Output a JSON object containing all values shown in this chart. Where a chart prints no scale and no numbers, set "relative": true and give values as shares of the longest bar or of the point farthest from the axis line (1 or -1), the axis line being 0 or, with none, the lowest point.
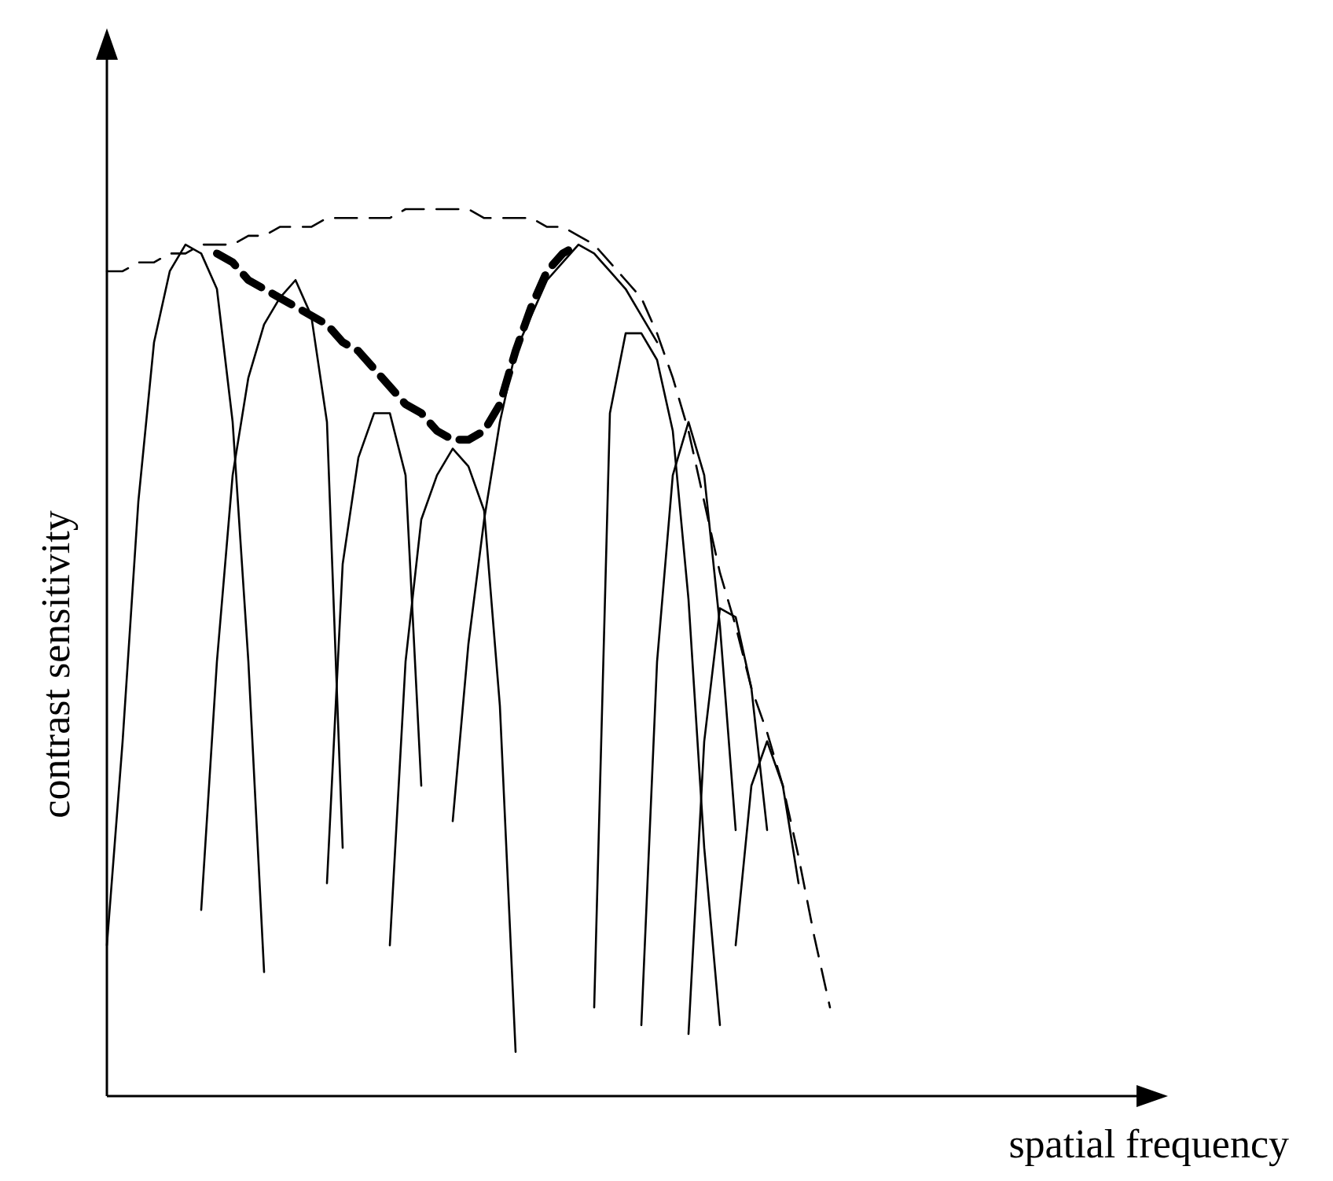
{
  "chart_data": {
    "type": "line",
    "relative": true,
    "xlabel": "spatial frequency",
    "ylabel": "contrast sensitivity",
    "categories": [
      null,
      null,
      null,
      null,
      null,
      null,
      null,
      null,
      null,
      null,
      null,
      null,
      null,
      null,
      null,
      null,
      null,
      null,
      null,
      null,
      null,
      null,
      null,
      null,
      null,
      null,
      null,
      null,
      null,
      null,
      null,
      null,
      null,
      null,
      null,
      null,
      null,
      null,
      null,
      null,
      null,
      null,
      null,
      null,
      null,
      null,
      null,
      null,
      null,
      null,
      null,
      null,
      null,
      null,
      null,
      null,
      null,
      null,
      null,
      null,
      null,
      null,
      null,
      null,
      null,
      null
    ],
    "series": [
      {
        "color": "#000000",
        "line_style": "dashed",
        "values": [
          0.93,
          0.93,
          0.94,
          0.94,
          0.95,
          0.95,
          0.96,
          0.96,
          0.96,
          0.97,
          0.97,
          0.98,
          0.98,
          0.98,
          0.99,
          0.99,
          0.99,
          0.99,
          0.99,
          1,
          1,
          1,
          1,
          1,
          0.99,
          0.99,
          0.99,
          0.99,
          0.98,
          0.98,
          0.97,
          0.96,
          0.94,
          0.92,
          0.9,
          0.86,
          0.81,
          0.75,
          0.67,
          0.59,
          0.53,
          0.46,
          0.41,
          0.35,
          0.27,
          0.18,
          0.1,
          null,
          null,
          null,
          null,
          null,
          null,
          null,
          null,
          null,
          null,
          null,
          null,
          null,
          null,
          null,
          null,
          null,
          null,
          null
        ]
      },
      {
        "color": "#000000",
        "line_style": "dashed",
        "values": [
          null,
          null,
          null,
          null,
          null,
          null,
          null,
          0.95,
          0.94,
          0.92,
          0.91,
          0.9,
          0.89,
          0.88,
          0.87,
          0.85,
          0.84,
          0.82,
          0.8,
          0.78,
          0.77,
          0.75,
          0.74,
          0.74,
          0.75,
          0.78,
          0.84,
          0.89,
          0.93,
          0.95,
          0.96,
          null,
          null,
          null,
          null,
          null,
          null,
          null,
          null,
          null,
          null,
          null,
          null,
          null,
          null,
          null,
          null,
          null,
          null,
          null,
          null,
          null,
          null,
          null,
          null,
          null,
          null,
          null,
          null,
          null,
          null,
          null,
          null,
          null,
          null,
          null
        ]
      },
      {
        "color": "#000000",
        "line_style": "solid",
        "values": [
          0.17,
          0.4,
          0.67,
          0.85,
          0.93,
          0.96,
          0.95,
          0.91,
          0.76,
          0.49,
          0.14,
          null,
          null,
          null,
          null,
          null,
          null,
          null,
          null,
          null,
          null,
          null,
          null,
          null,
          null,
          null,
          null,
          null,
          null,
          null,
          null,
          null,
          null,
          null,
          null,
          null,
          null,
          null,
          null,
          null,
          null,
          null,
          null,
          null,
          null,
          null,
          null,
          null,
          null,
          null,
          null,
          null,
          null,
          null,
          null,
          null,
          null,
          null,
          null,
          null,
          null,
          null,
          null,
          null,
          null,
          null
        ]
      },
      {
        "color": "#000000",
        "line_style": "solid",
        "values": [
          null,
          null,
          null,
          null,
          null,
          null,
          0.21,
          0.49,
          0.7,
          0.81,
          0.87,
          0.9,
          0.92,
          0.88,
          0.76,
          0.28,
          null,
          null,
          null,
          null,
          null,
          null,
          null,
          null,
          null,
          null,
          null,
          null,
          null,
          null,
          null,
          null,
          null,
          null,
          null,
          null,
          null,
          null,
          null,
          null,
          null,
          null,
          null,
          null,
          null,
          null,
          null,
          null,
          null,
          null,
          null,
          null,
          null,
          null,
          null,
          null,
          null,
          null,
          null,
          null,
          null,
          null,
          null,
          null,
          null,
          null
        ]
      },
      {
        "color": "#000000",
        "line_style": "solid",
        "values": [
          null,
          null,
          null,
          null,
          null,
          null,
          null,
          null,
          null,
          null,
          null,
          null,
          null,
          null,
          0.24,
          0.6,
          0.72,
          0.77,
          0.77,
          0.7,
          0.35,
          null,
          null,
          null,
          null,
          null,
          null,
          null,
          null,
          null,
          null,
          null,
          null,
          null,
          null,
          null,
          null,
          null,
          null,
          null,
          null,
          null,
          null,
          null,
          null,
          null,
          null,
          null,
          null,
          null,
          null,
          null,
          null,
          null,
          null,
          null,
          null,
          null,
          null,
          null,
          null,
          null,
          null,
          null,
          null,
          null
        ]
      },
      {
        "color": "#000000",
        "line_style": "solid",
        "values": [
          null,
          null,
          null,
          null,
          null,
          null,
          null,
          null,
          null,
          null,
          null,
          null,
          null,
          null,
          null,
          null,
          null,
          null,
          0.17,
          0.49,
          0.65,
          0.7,
          0.73,
          0.71,
          0.66,
          0.44,
          0.05,
          null,
          null,
          null,
          null,
          null,
          null,
          null,
          null,
          null,
          null,
          null,
          null,
          null,
          null,
          null,
          null,
          null,
          null,
          null,
          null,
          null,
          null,
          null,
          null,
          null,
          null,
          null,
          null,
          null,
          null,
          null,
          null,
          null,
          null,
          null,
          null,
          null,
          null,
          null
        ]
      },
      {
        "color": "#000000",
        "line_style": "solid",
        "values": [
          null,
          null,
          null,
          null,
          null,
          null,
          null,
          null,
          null,
          null,
          null,
          null,
          null,
          null,
          null,
          null,
          null,
          null,
          null,
          null,
          null,
          null,
          0.31,
          0.51,
          0.65,
          0.76,
          0.84,
          0.88,
          0.92,
          0.94,
          0.96,
          0.95,
          0.93,
          0.91,
          0.88,
          0.85,
          null,
          null,
          null,
          null,
          null,
          null,
          null,
          null,
          null,
          null,
          null,
          null,
          null,
          null,
          null,
          null,
          null,
          null,
          null,
          null,
          null,
          null,
          null,
          null,
          null,
          null,
          null,
          null,
          null,
          null
        ]
      },
      {
        "color": "#000000",
        "line_style": "solid",
        "values": [
          null,
          null,
          null,
          null,
          null,
          null,
          null,
          null,
          null,
          null,
          null,
          null,
          null,
          null,
          null,
          null,
          null,
          null,
          null,
          null,
          null,
          null,
          null,
          null,
          null,
          null,
          null,
          null,
          null,
          null,
          null,
          0.1,
          0.77,
          0.86,
          0.86,
          0.83,
          0.75,
          0.56,
          0.28,
          0.08,
          null,
          null,
          null,
          null,
          null,
          null,
          null,
          null,
          null,
          null,
          null,
          null,
          null,
          null,
          null,
          null,
          null,
          null,
          null,
          null,
          null,
          null,
          null,
          null,
          null,
          null
        ]
      },
      {
        "color": "#000000",
        "line_style": "solid",
        "values": [
          null,
          null,
          null,
          null,
          null,
          null,
          null,
          null,
          null,
          null,
          null,
          null,
          null,
          null,
          null,
          null,
          null,
          null,
          null,
          null,
          null,
          null,
          null,
          null,
          null,
          null,
          null,
          null,
          null,
          null,
          null,
          null,
          null,
          null,
          0.08,
          0.49,
          0.7,
          0.76,
          0.7,
          0.53,
          0.3,
          null,
          null,
          null,
          null,
          null,
          null,
          null,
          null,
          null,
          null,
          null,
          null,
          null,
          null,
          null,
          null,
          null,
          null,
          null,
          null,
          null,
          null,
          null,
          null,
          null
        ]
      },
      {
        "color": "#000000",
        "line_style": "solid",
        "values": [
          null,
          null,
          null,
          null,
          null,
          null,
          null,
          null,
          null,
          null,
          null,
          null,
          null,
          null,
          null,
          null,
          null,
          null,
          null,
          null,
          null,
          null,
          null,
          null,
          null,
          null,
          null,
          null,
          null,
          null,
          null,
          null,
          null,
          null,
          null,
          null,
          null,
          0.07,
          0.4,
          0.55,
          0.54,
          0.46,
          0.3,
          null,
          null,
          null,
          null,
          null,
          null,
          null,
          null,
          null,
          null,
          null,
          null,
          null,
          null,
          null,
          null,
          null,
          null,
          null,
          null,
          null,
          null,
          null
        ]
      },
      {
        "color": "#000000",
        "line_style": "solid",
        "values": [
          null,
          null,
          null,
          null,
          null,
          null,
          null,
          null,
          null,
          null,
          null,
          null,
          null,
          null,
          null,
          null,
          null,
          null,
          null,
          null,
          null,
          null,
          null,
          null,
          null,
          null,
          null,
          null,
          null,
          null,
          null,
          null,
          null,
          null,
          null,
          null,
          null,
          null,
          null,
          null,
          0.17,
          0.35,
          0.4,
          0.35,
          0.24,
          null,
          null,
          null,
          null,
          null,
          null,
          null,
          null,
          null,
          null,
          null,
          null,
          null,
          null,
          null,
          null,
          null,
          null,
          null,
          null,
          null
        ]
      }
    ]
  }
}
